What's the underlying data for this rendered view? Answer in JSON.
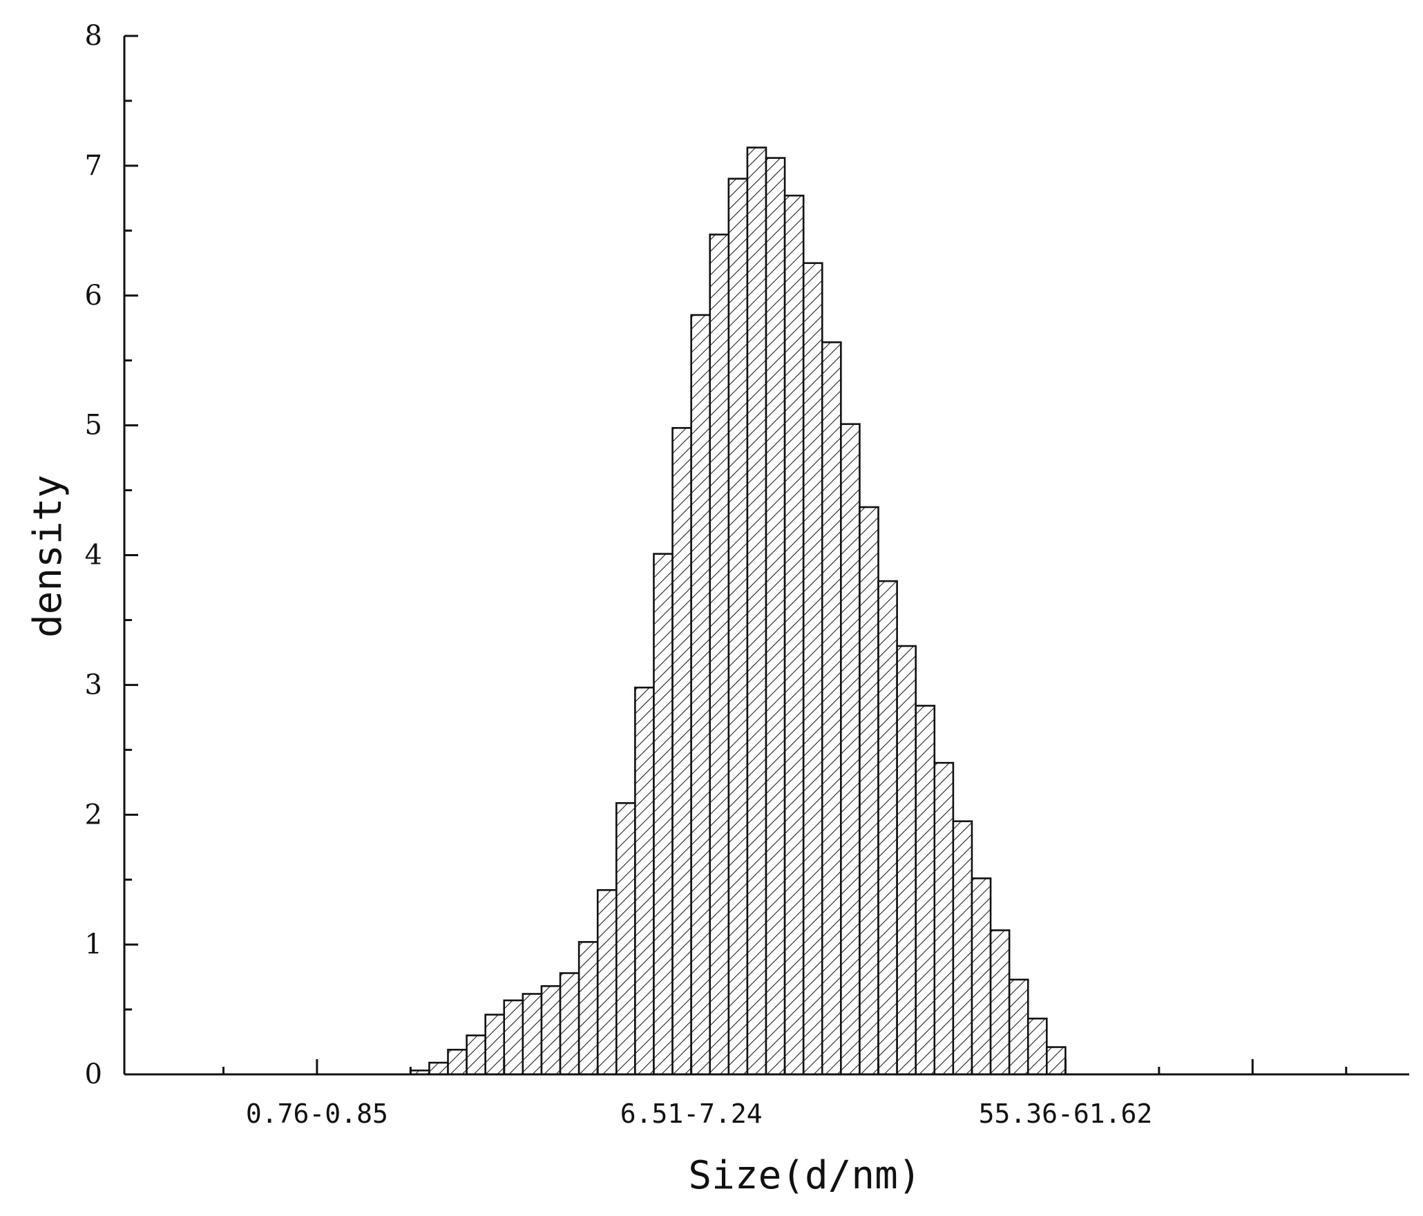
{
  "chart_data": {
    "type": "bar",
    "title": "",
    "xlabel": "Size(d/nm)",
    "ylabel": "density",
    "ylim": [
      0,
      8
    ],
    "yticks": [
      "0",
      "1",
      "2",
      "3",
      "4",
      "5",
      "6",
      "7",
      "8"
    ],
    "category_labels": [
      {
        "text": "0.76-0.85",
        "bin": 10
      },
      {
        "text": "6.51-7.24",
        "bin": 30
      },
      {
        "text": "55.36-61.62",
        "bin": 50
      }
    ],
    "bar_style": "hatched",
    "grid": false,
    "legend": "none",
    "values": [
      0,
      0,
      0,
      0,
      0,
      0,
      0,
      0,
      0,
      0,
      0,
      0,
      0,
      0,
      0,
      0,
      0,
      0,
      0,
      0,
      0,
      0,
      0,
      0,
      0,
      0,
      0,
      0,
      0,
      0,
      0,
      0,
      0,
      0,
      0,
      0,
      0,
      0,
      0,
      0,
      0,
      0,
      0,
      0,
      0,
      0,
      0,
      0,
      0,
      0,
      0,
      0,
      0,
      0,
      0,
      0,
      0,
      0,
      0,
      0,
      0,
      0,
      0,
      0,
      0,
      0,
      0,
      0,
      0,
      0
    ],
    "series": [
      {
        "values": [
          0.03,
          0.09,
          0.19,
          0.3,
          0.46,
          0.57,
          0.62,
          0.68,
          0.78,
          1.02,
          1.42,
          2.09,
          2.98,
          4.01,
          4.98,
          5.85,
          6.47,
          6.9,
          7.14,
          7.06,
          6.77,
          6.25,
          5.64,
          5.01,
          4.37,
          3.8,
          3.3,
          2.84,
          2.4,
          1.95,
          1.51,
          1.11,
          0.73,
          0.43,
          0.21
        ],
        "first_bin": 15
      }
    ],
    "xaxis_major_ticks": [
      0,
      10,
      20,
      30,
      40,
      50,
      60,
      70
    ],
    "xaxis_minor_ticks": [
      5,
      15,
      25,
      35,
      45,
      55,
      65
    ],
    "colors": {
      "bar_stroke": "#111111",
      "bar_fill": "#ffffff",
      "hatch": "#222222",
      "axis": "#111111"
    }
  }
}
